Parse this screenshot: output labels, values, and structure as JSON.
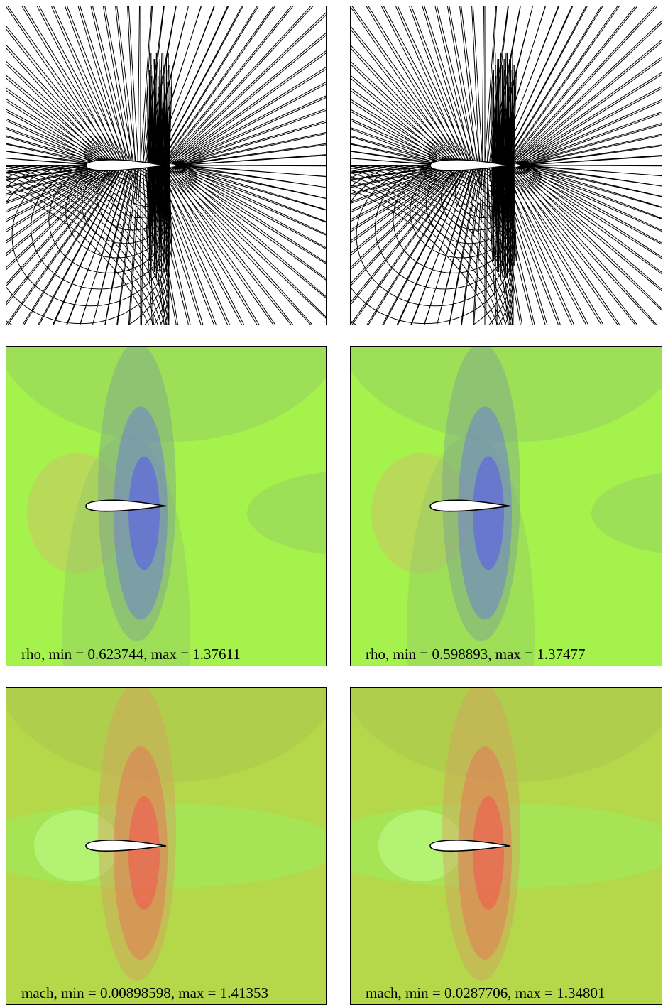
{
  "rho_plots": [
    {
      "label": "rho,  min = 0.623744,  max = 1.37611"
    },
    {
      "label": "rho,  min = 0.598893,  max = 1.37477"
    }
  ],
  "mach_plots": [
    {
      "label": "mach,  min = 0.00898598,  max = 1.41353"
    },
    {
      "label": "mach,  min = 0.0287706,  max = 1.34801"
    }
  ]
}
